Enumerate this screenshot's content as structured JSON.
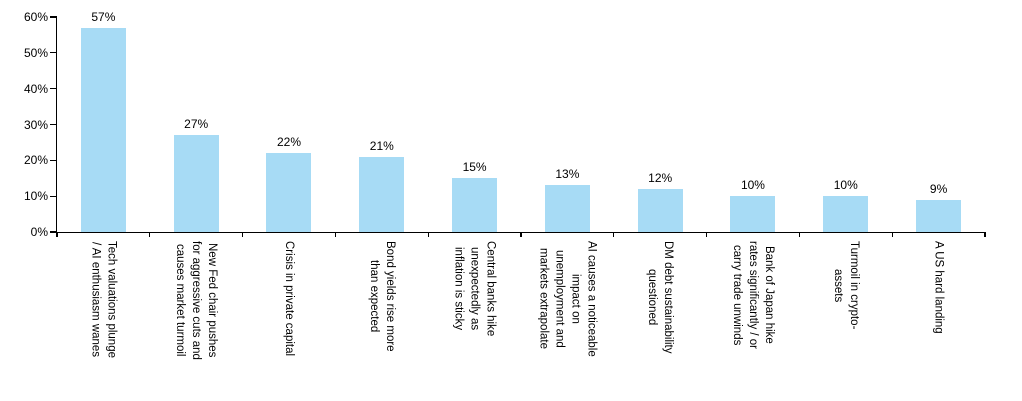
{
  "chart_data": {
    "type": "bar",
    "title": "",
    "xlabel": "",
    "ylabel": "",
    "ylim": [
      0,
      60
    ],
    "grid": false,
    "legend": false,
    "bar_color": "#A7DBF5",
    "axis_color": "#000000",
    "text_color": "#000000",
    "yticks": [
      {
        "label": "0%",
        "value": 0
      },
      {
        "label": "10%",
        "value": 10
      },
      {
        "label": "20%",
        "value": 20
      },
      {
        "label": "30%",
        "value": 30
      },
      {
        "label": "40%",
        "value": 40
      },
      {
        "label": "50%",
        "value": 50
      },
      {
        "label": "60%",
        "value": 60
      }
    ],
    "categories": [
      {
        "label": "Tech valuations plunge / AI enthusiasm wanes",
        "lines": [
          "Tech valuations plunge",
          "/ AI enthusiasm wanes"
        ],
        "value": 57,
        "value_label": "57%"
      },
      {
        "label": "New Fed chair pushes for aggressive cuts and causes market turmoil",
        "lines": [
          "New Fed chair pushes",
          "for aggressive cuts and",
          "causes market turmoil"
        ],
        "value": 27,
        "value_label": "27%"
      },
      {
        "label": "Crisis in private capital",
        "lines": [
          "Crisis in private capital"
        ],
        "value": 22,
        "value_label": "22%"
      },
      {
        "label": "Bond yields rise more than expected",
        "lines": [
          "Bond yields rise more",
          "than expected"
        ],
        "value": 21,
        "value_label": "21%"
      },
      {
        "label": "Central banks hike unexpectedly as inflation is sticky",
        "lines": [
          "Central banks hike",
          "unexpectedly as",
          "inflation is sticky"
        ],
        "value": 15,
        "value_label": "15%"
      },
      {
        "label": "AI causes a noticeable impact on unemployment and markets extrapolate",
        "lines": [
          "AI causes a noticeable",
          "impact on",
          "unemployment and",
          "markets extrapolate"
        ],
        "value": 13,
        "value_label": "13%"
      },
      {
        "label": "DM debt sustainability questioned",
        "lines": [
          "DM debt sustainability",
          "questioned"
        ],
        "value": 12,
        "value_label": "12%"
      },
      {
        "label": "Bank of Japan hike rates significantly / or carry trade unwinds",
        "lines": [
          "Bank of Japan hike",
          "rates significantly / or",
          "carry trade unwinds"
        ],
        "value": 10,
        "value_label": "10%"
      },
      {
        "label": "Turmoil in crypto-assets",
        "lines": [
          "Turmoil in crypto-",
          "assets"
        ],
        "value": 10,
        "value_label": "10%"
      },
      {
        "label": "A US hard landing",
        "lines": [
          "A US hard landing"
        ],
        "value": 9,
        "value_label": "9%"
      }
    ]
  }
}
